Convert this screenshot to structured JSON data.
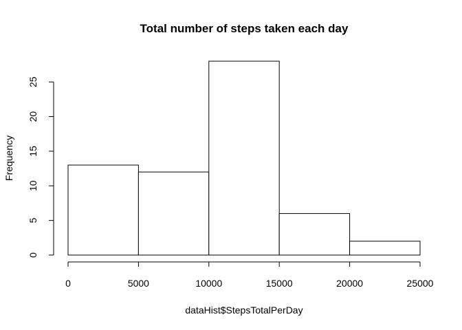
{
  "chart_data": {
    "type": "histogram",
    "title": "Total number of steps taken each day",
    "xlabel": "dataHist$StepsTotalPerDay",
    "ylabel": "Frequency",
    "bins": [
      {
        "start": 0,
        "end": 5000,
        "value": 13
      },
      {
        "start": 5000,
        "end": 10000,
        "value": 12
      },
      {
        "start": 10000,
        "end": 15000,
        "value": 28
      },
      {
        "start": 15000,
        "end": 20000,
        "value": 6
      },
      {
        "start": 20000,
        "end": 25000,
        "value": 2
      }
    ],
    "xlim": [
      0,
      25000
    ],
    "ylim": [
      0,
      28
    ],
    "xticks": [
      0,
      5000,
      10000,
      15000,
      20000,
      25000
    ],
    "yticks": [
      0,
      5,
      10,
      15,
      20,
      25
    ],
    "grid": false,
    "legend": "none",
    "colors": {
      "bar_fill": "#ffffff",
      "bar_stroke": "#000000"
    }
  }
}
